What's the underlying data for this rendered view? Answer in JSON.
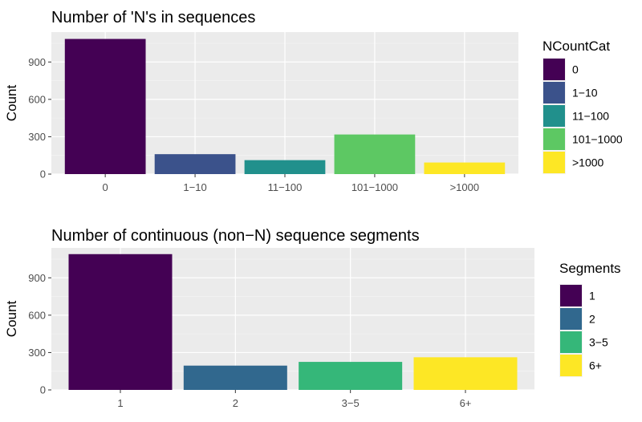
{
  "chart_data": [
    {
      "type": "bar",
      "title": "Number of 'N's in sequences",
      "xlabel": "",
      "ylabel": "Count",
      "categories": [
        "0",
        "1−10",
        "11−100",
        "101−1000",
        ">1000"
      ],
      "values": [
        1085,
        160,
        112,
        318,
        93
      ],
      "colors": [
        "#440154",
        "#3B528B",
        "#21908C",
        "#5DC863",
        "#FDE725"
      ],
      "yticks": [
        0,
        300,
        600,
        900
      ],
      "ylim": [
        0,
        1140
      ],
      "grid": true,
      "legend": {
        "title": "NCountCat",
        "labels": [
          "0",
          "1−10",
          "11−100",
          "101−1000",
          ">1000"
        ],
        "position": "right"
      }
    },
    {
      "type": "bar",
      "title": "Number of continuous (non−N) sequence segments",
      "xlabel": "",
      "ylabel": "Count",
      "categories": [
        "1",
        "2",
        "3−5",
        "6+"
      ],
      "values": [
        1090,
        195,
        225,
        262
      ],
      "colors": [
        "#440154",
        "#31688E",
        "#35B779",
        "#FDE725"
      ],
      "yticks": [
        0,
        300,
        600,
        900
      ],
      "ylim": [
        0,
        1140
      ],
      "grid": true,
      "legend": {
        "title": "Segments",
        "labels": [
          "1",
          "2",
          "3−5",
          "6+"
        ],
        "position": "right"
      }
    }
  ]
}
